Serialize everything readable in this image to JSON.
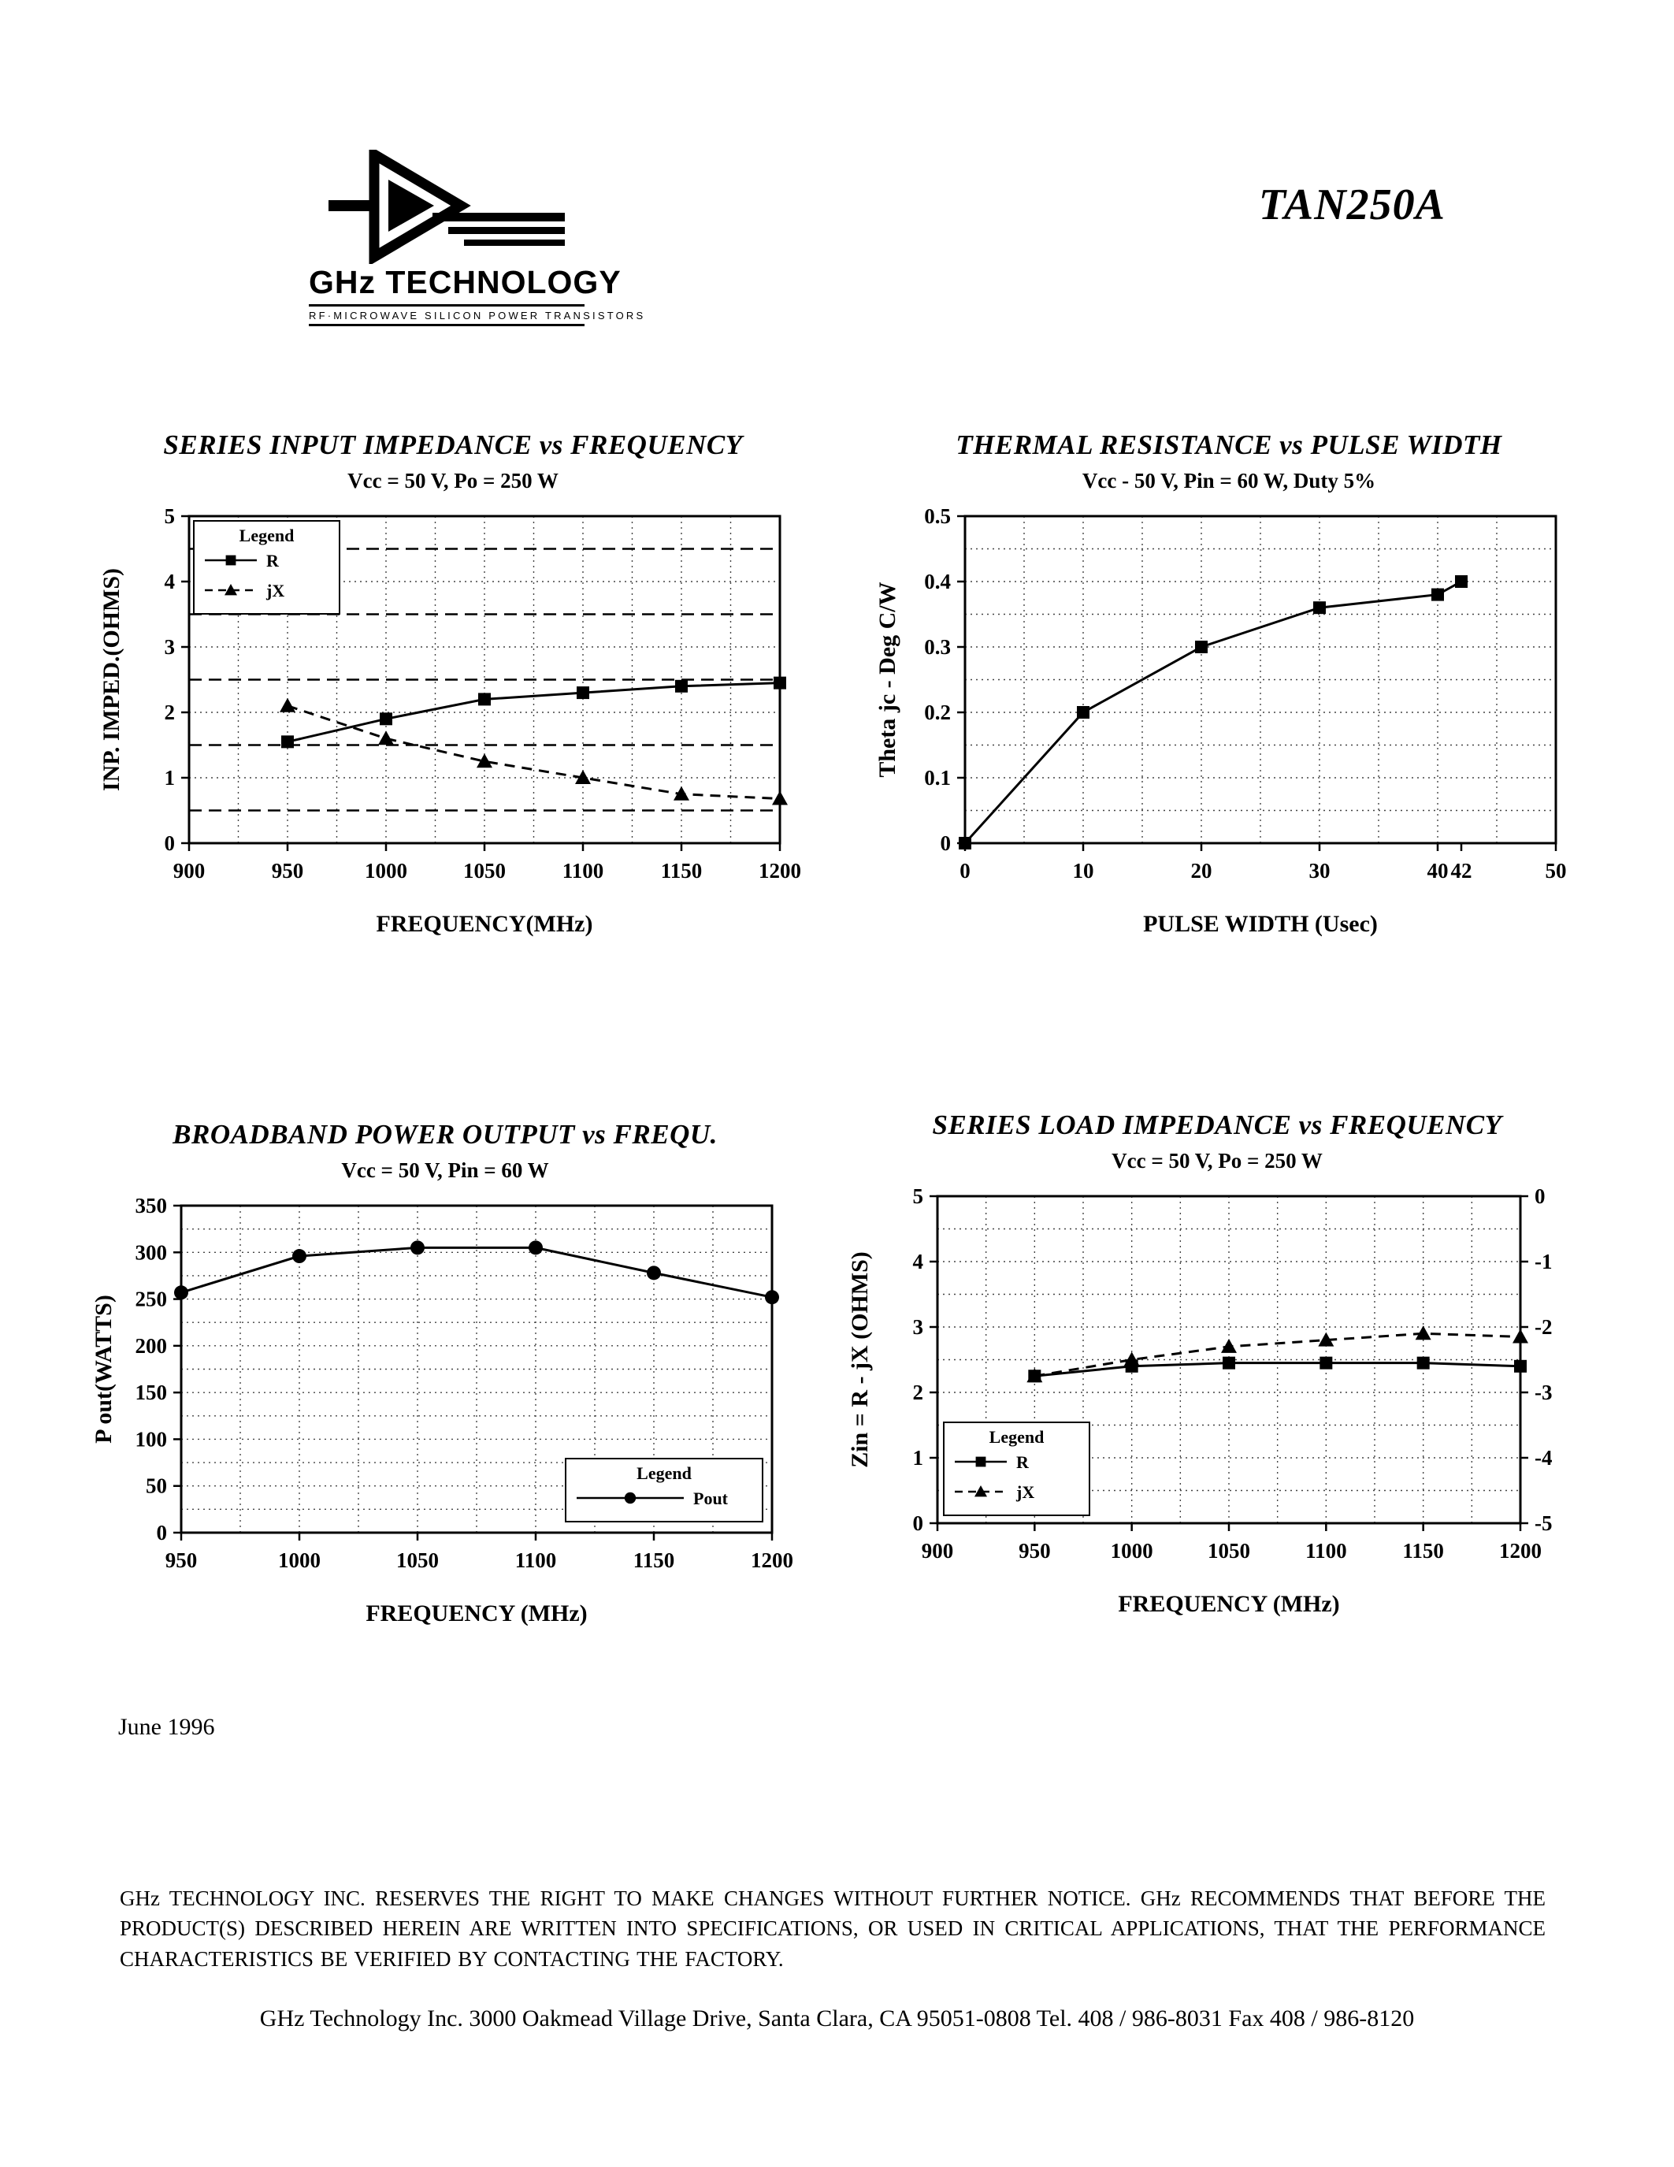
{
  "page": {
    "title": "TAN250A",
    "logo": {
      "name": "GHz TECHNOLOGY",
      "tagline": "RF·MICROWAVE SILICON POWER TRANSISTORS"
    },
    "footer": {
      "date": "June 1996",
      "disclaimer": "GHz TECHNOLOGY INC. RESERVES THE RIGHT TO MAKE CHANGES WITHOUT FURTHER NOTICE. GHz RECOMMENDS THAT BEFORE THE PRODUCT(S) DESCRIBED HEREIN ARE WRITTEN INTO SPECIFICATIONS, OR USED IN CRITICAL APPLICATIONS, THAT THE PERFORMANCE CHARACTERISTICS BE VERIFIED BY CONTACTING THE FACTORY.",
      "address": "GHz Technology Inc. 3000 Oakmead Village Drive, Santa Clara, CA 95051-0808 Tel. 408 / 986-8031 Fax 408 / 986-8120"
    }
  },
  "chart_data": [
    {
      "type": "line",
      "title": "SERIES INPUT IMPEDANCE vs FREQUENCY",
      "subtitle": "Vcc = 50 V, Po = 250 W",
      "xlabel": "FREQUENCY(MHz)",
      "ylabel": "INP. IMPED.(OHMS)",
      "xlim": [
        900,
        1200
      ],
      "ylim": [
        0,
        5
      ],
      "xticks": [
        900,
        950,
        1000,
        1050,
        1100,
        1150,
        1200
      ],
      "yticks": [
        0,
        1,
        2,
        3,
        4,
        5
      ],
      "grid": {
        "x_minor": 25,
        "y_minor": 1,
        "y_dashed": [
          0.5,
          1.5,
          2.5,
          3.5,
          4.5
        ]
      },
      "legend": {
        "title": "Legend",
        "position": "top-left"
      },
      "series": [
        {
          "name": "R",
          "marker": "square",
          "line": "solid",
          "x": [
            950,
            1000,
            1050,
            1100,
            1150,
            1200
          ],
          "y": [
            1.55,
            1.9,
            2.2,
            2.3,
            2.4,
            2.45
          ]
        },
        {
          "name": "jX",
          "marker": "triangle",
          "line": "dashed",
          "x": [
            950,
            1000,
            1050,
            1100,
            1150,
            1200
          ],
          "y": [
            2.1,
            1.6,
            1.25,
            1.0,
            0.75,
            0.68
          ]
        }
      ]
    },
    {
      "type": "line",
      "title": "THERMAL RESISTANCE vs PULSE WIDTH",
      "subtitle": "Vcc - 50 V,  Pin = 60 W, Duty 5%",
      "xlabel": "PULSE WIDTH (Usec)",
      "ylabel": "Theta jc - Deg C/W",
      "xlim": [
        0,
        50
      ],
      "ylim": [
        0,
        0.5
      ],
      "xticks": [
        0,
        10,
        20,
        30,
        40,
        42,
        50
      ],
      "yticks": [
        0,
        0.1,
        0.2,
        0.3,
        0.4,
        0.5
      ],
      "grid": {
        "x_minor": 5,
        "y_minor": 0.05
      },
      "series": [
        {
          "name": "Theta jc",
          "marker": "square",
          "line": "solid",
          "x": [
            0,
            10,
            20,
            30,
            40,
            42
          ],
          "y": [
            0,
            0.2,
            0.3,
            0.36,
            0.38,
            0.4
          ]
        }
      ]
    },
    {
      "type": "line",
      "title": "BROADBAND POWER OUTPUT vs FREQU.",
      "subtitle": "Vcc = 50 V, Pin = 60 W",
      "xlabel": "FREQUENCY (MHz)",
      "ylabel": "P out(WATTS)",
      "xlim": [
        950,
        1200
      ],
      "ylim": [
        0,
        350
      ],
      "xticks": [
        950,
        1000,
        1050,
        1100,
        1150,
        1200
      ],
      "yticks": [
        0,
        50,
        100,
        150,
        200,
        250,
        300,
        350
      ],
      "grid": {
        "x_minor": 25,
        "y_minor": 25
      },
      "legend": {
        "title": "Legend",
        "position": "bottom-right"
      },
      "series": [
        {
          "name": "Pout",
          "marker": "circle",
          "line": "solid",
          "x": [
            950,
            1000,
            1050,
            1100,
            1150,
            1200
          ],
          "y": [
            257,
            296,
            305,
            305,
            278,
            252
          ]
        }
      ]
    },
    {
      "type": "line",
      "title": "SERIES LOAD IMPEDANCE vs FREQUENCY",
      "subtitle": "Vcc = 50 V, Po = 250 W",
      "xlabel": "FREQUENCY (MHz)",
      "ylabel": "Zin = R - jX (OHMS)",
      "xlim": [
        900,
        1200
      ],
      "ylim": [
        0,
        5
      ],
      "xticks": [
        900,
        950,
        1000,
        1050,
        1100,
        1150,
        1200
      ],
      "yticks": [
        0,
        1,
        2,
        3,
        4,
        5
      ],
      "y2_ticks": [
        "0",
        "-1",
        "-2",
        "-3",
        "-4",
        "-5"
      ],
      "grid": {
        "x_minor": 25,
        "y_minor": 0.5
      },
      "legend": {
        "title": "Legend",
        "position": "bottom-left"
      },
      "series": [
        {
          "name": "R",
          "marker": "square",
          "line": "solid",
          "x": [
            950,
            1000,
            1050,
            1100,
            1150,
            1200
          ],
          "y": [
            2.25,
            2.4,
            2.45,
            2.45,
            2.45,
            2.4
          ]
        },
        {
          "name": "jX",
          "marker": "triangle",
          "line": "dashed",
          "x": [
            950,
            1000,
            1050,
            1100,
            1150,
            1200
          ],
          "y": [
            2.25,
            2.5,
            2.7,
            2.8,
            2.9,
            2.85
          ]
        }
      ]
    }
  ]
}
